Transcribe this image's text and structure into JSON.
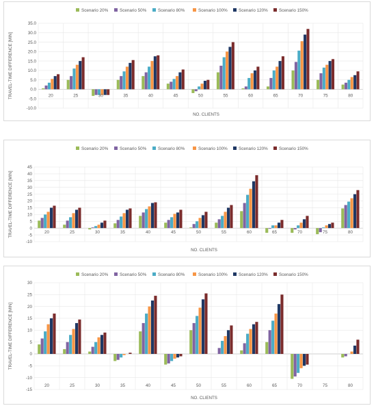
{
  "legend": [
    "Scenario 20%",
    "Scenario 50%",
    "Scenario 80%",
    "Scenario 100%",
    "Scenario 120%",
    "Scenario 150%"
  ],
  "colors": [
    "#9bbb59",
    "#8064a2",
    "#4bacc6",
    "#f79646",
    "#1f3864",
    "#7b2c2c"
  ],
  "chart_data": [
    {
      "type": "bar",
      "ylabel": "TRAVEL-TIME DIFFERENCE [MIN]",
      "xlabel": "NO. CLIENTS",
      "ylim": [
        -10,
        35
      ],
      "yticks": [
        "-10.0",
        "-5.0",
        "0.0",
        "5.0",
        "10.0",
        "15.0",
        "20.0",
        "25.0",
        "30.0",
        "35.0"
      ],
      "categories": [
        "20",
        "25",
        "30",
        "35",
        "40",
        "45",
        "50",
        "55",
        "60",
        "65",
        "70",
        "75",
        "80"
      ],
      "series": [
        {
          "name": "Scenario 20%",
          "values": [
            0.5,
            5,
            -3.5,
            5,
            7,
            3,
            -2,
            9,
            0.5,
            1.5,
            10,
            5,
            2.5
          ]
        },
        {
          "name": "Scenario 50%",
          "values": [
            2,
            7,
            -3,
            7,
            9,
            4,
            -1,
            12.5,
            1.5,
            6,
            14.5,
            8.5,
            3.5
          ]
        },
        {
          "name": "Scenario 80%",
          "values": [
            3.5,
            11,
            -3,
            9.5,
            12,
            5.5,
            1.5,
            17,
            6,
            10,
            20.5,
            11.5,
            5
          ]
        },
        {
          "name": "Scenario 100%",
          "values": [
            5.5,
            13,
            -3,
            12,
            15,
            7,
            3,
            20,
            8.5,
            12,
            25.5,
            13,
            6.5
          ]
        },
        {
          "name": "Scenario 120%",
          "values": [
            7,
            15,
            -3,
            14,
            17.5,
            9,
            4.5,
            22.5,
            10,
            15,
            29,
            15,
            7.5
          ]
        },
        {
          "name": "Scenario 150%",
          "values": [
            8,
            17,
            -3,
            15.5,
            18,
            10.5,
            5,
            25,
            12,
            17.5,
            32,
            16,
            9.5
          ]
        }
      ]
    },
    {
      "type": "bar",
      "ylabel": "TRAVEL-TIME DIFFERENCE [MIN]",
      "xlabel": "NO. CLIENTS",
      "ylim": [
        -10,
        45
      ],
      "yticks": [
        "-10",
        "-5",
        "0",
        "5",
        "10",
        "15",
        "20",
        "25",
        "30",
        "35",
        "40",
        "45"
      ],
      "categories": [
        "20",
        "25",
        "30",
        "35",
        "40",
        "45",
        "50",
        "55",
        "60",
        "65",
        "70",
        "75",
        "80"
      ],
      "series": [
        {
          "name": "Scenario 20%",
          "values": [
            5.5,
            2.5,
            -1,
            3.5,
            9,
            4,
            0.5,
            4,
            12.5,
            -3.5,
            -3.5,
            -4.5,
            14.5
          ]
        },
        {
          "name": "Scenario 50%",
          "values": [
            7.5,
            5.5,
            0.5,
            6,
            11.5,
            6,
            3,
            6.5,
            18.5,
            -0.5,
            -1,
            -3,
            17
          ]
        },
        {
          "name": "Scenario 80%",
          "values": [
            10,
            8,
            1.5,
            8.5,
            14,
            8,
            5,
            9,
            24.5,
            2,
            2,
            0.5,
            19.5
          ]
        },
        {
          "name": "Scenario 100%",
          "values": [
            12,
            11,
            2.5,
            11,
            16,
            10.5,
            7.5,
            12,
            29,
            2,
            4,
            2,
            22
          ]
        },
        {
          "name": "Scenario 120%",
          "values": [
            15,
            13.5,
            4,
            13.5,
            18.5,
            11.5,
            9.5,
            15,
            34.5,
            4,
            6.5,
            3,
            25
          ]
        },
        {
          "name": "Scenario 150%",
          "values": [
            16.5,
            15,
            5.5,
            14.5,
            19,
            13.5,
            12,
            17,
            39,
            6,
            9,
            4,
            28
          ]
        }
      ]
    },
    {
      "type": "bar",
      "ylabel": "TRAVEL-TIME DIFFERENCE [MIN]",
      "xlabel": "NO. CLIENTS",
      "ylim": [
        -15,
        30
      ],
      "yticks": [
        "-15",
        "-10",
        "-5",
        "0",
        "5",
        "10",
        "15",
        "20",
        "25",
        "30"
      ],
      "categories": [
        "20",
        "25",
        "30",
        "35",
        "40",
        "45",
        "50",
        "55",
        "60",
        "65",
        "70",
        "75",
        "80"
      ],
      "series": [
        {
          "name": "Scenario 20%",
          "values": [
            4,
            2,
            1,
            -3,
            9.5,
            -4.5,
            10,
            0,
            1.5,
            5,
            -10.5,
            0,
            -1.5
          ]
        },
        {
          "name": "Scenario 50%",
          "values": [
            6.5,
            5,
            3,
            -2.5,
            13,
            -4,
            13,
            2.5,
            4.5,
            10,
            -9.5,
            0,
            -1
          ]
        },
        {
          "name": "Scenario 80%",
          "values": [
            9.5,
            8,
            5,
            -1.5,
            17,
            -3,
            16,
            5.5,
            8.5,
            14,
            -8,
            0,
            0
          ]
        },
        {
          "name": "Scenario 100%",
          "values": [
            12.5,
            10.5,
            7,
            -0.5,
            20,
            -2,
            19.5,
            7.5,
            10.5,
            17,
            -6,
            0,
            1
          ]
        },
        {
          "name": "Scenario 120%",
          "values": [
            15,
            13,
            8,
            0,
            22.5,
            -1.5,
            23,
            10,
            12.5,
            21,
            -5,
            0,
            3.5
          ]
        },
        {
          "name": "Scenario 150%",
          "values": [
            17,
            14.5,
            9,
            0.5,
            24.5,
            -1,
            25.5,
            12,
            13.5,
            25,
            -4.5,
            0,
            6
          ]
        }
      ]
    }
  ]
}
